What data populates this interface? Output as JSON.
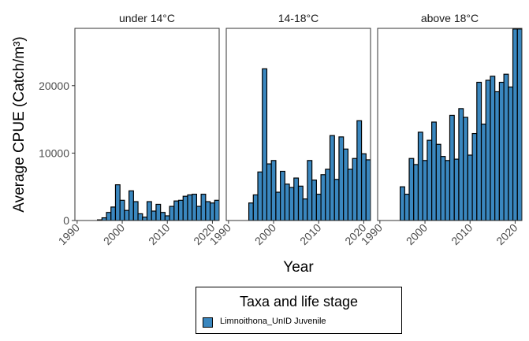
{
  "chart_data": {
    "type": "bar",
    "ylabel": "Average CPUE (Catch/m³)",
    "xlabel": "Year",
    "ylim": [
      0,
      28500
    ],
    "xlim": [
      1989.5,
      2021.5
    ],
    "x_ticks": [
      1990,
      2000,
      2010,
      2020
    ],
    "x_tick_labels": [
      "1990",
      "2000",
      "2010",
      "2020"
    ],
    "y_ticks": [
      0,
      10000,
      20000
    ],
    "y_tick_labels": [
      "0",
      "10000",
      "20000"
    ],
    "legend_placement": "bottom",
    "grid": false,
    "bar_color": "#3A87BF",
    "legend": {
      "title": "Taxa and life stage",
      "items": [
        {
          "label": "Limnoithona_UnID Juvenile",
          "color": "#3A87BF"
        }
      ]
    },
    "panels": [
      {
        "title": "under 14°C",
        "years": [
          1995,
          1996,
          1997,
          1998,
          1999,
          2000,
          2001,
          2002,
          2003,
          2004,
          2005,
          2006,
          2007,
          2008,
          2009,
          2010,
          2011,
          2012,
          2013,
          2014,
          2015,
          2016,
          2017,
          2018,
          2019,
          2020,
          2021
        ],
        "values": [
          100,
          400,
          1200,
          2000,
          5300,
          3000,
          1500,
          4400,
          2800,
          1000,
          500,
          2800,
          1400,
          2400,
          1200,
          700,
          2100,
          2900,
          3000,
          3600,
          3800,
          3900,
          2100,
          3900,
          2800,
          2600,
          3000
        ]
      },
      {
        "title": "14-18°C",
        "years": [
          1995,
          1996,
          1997,
          1998,
          1999,
          2000,
          2001,
          2002,
          2003,
          2004,
          2005,
          2006,
          2007,
          2008,
          2009,
          2010,
          2011,
          2012,
          2013,
          2014,
          2015,
          2016,
          2017,
          2018,
          2019,
          2020,
          2021
        ],
        "values": [
          2600,
          3800,
          7200,
          22500,
          8400,
          8900,
          4200,
          7300,
          5400,
          4900,
          6300,
          5100,
          3200,
          8900,
          6000,
          3900,
          6800,
          7600,
          12600,
          6100,
          12400,
          10600,
          7600,
          9200,
          14800,
          9900,
          9000
        ]
      },
      {
        "title": "above 18°C",
        "years": [
          1995,
          1996,
          1997,
          1998,
          1999,
          2000,
          2001,
          2002,
          2003,
          2004,
          2005,
          2006,
          2007,
          2008,
          2009,
          2010,
          2011,
          2012,
          2013,
          2014,
          2015,
          2016,
          2017,
          2018,
          2019,
          2020,
          2021
        ],
        "values": [
          5000,
          3900,
          9200,
          8300,
          13100,
          8900,
          11900,
          14600,
          11300,
          9500,
          8900,
          15600,
          9100,
          16600,
          15300,
          9700,
          12900,
          20500,
          14300,
          20800,
          21400,
          19100,
          20500,
          21700,
          19800,
          28400,
          28400
        ]
      }
    ]
  }
}
